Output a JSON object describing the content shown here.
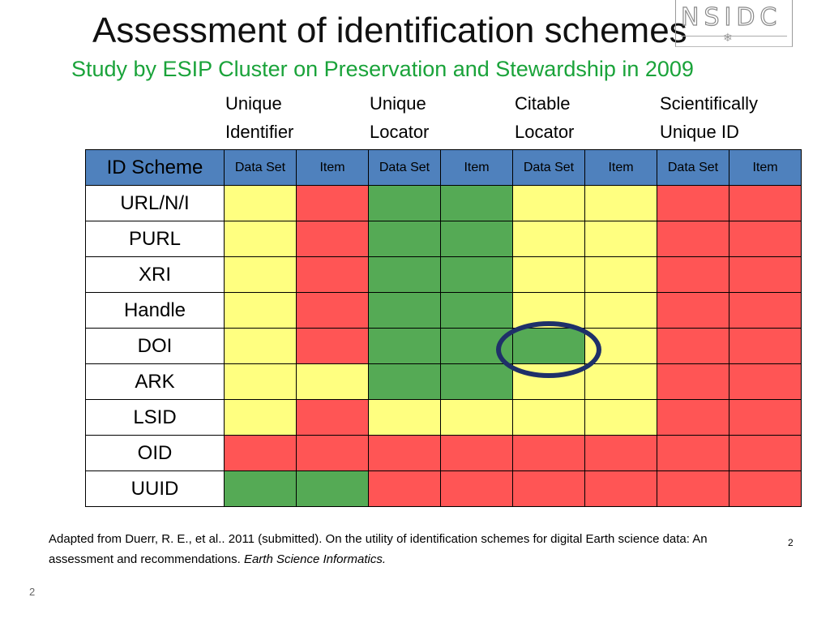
{
  "title": "Assessment of identification schemes",
  "subtitle": "Study by ESIP Cluster on Preservation and Stewardship in 2009",
  "logo_text": "NSIDC",
  "column_groups": [
    {
      "line1": "Unique",
      "line2": "Identifier"
    },
    {
      "line1": "Unique",
      "line2": "Locator"
    },
    {
      "line1": "Citable",
      "line2": "Locator"
    },
    {
      "line1": "Scientifically",
      "line2": "Unique ID"
    }
  ],
  "table": {
    "corner": "ID Scheme",
    "subheaders": [
      "Data Set",
      "Item",
      "Data Set",
      "Item",
      "Data Set",
      "Item",
      "Data Set",
      "Item"
    ],
    "rows": [
      {
        "label": "URL/N/I",
        "cells": [
          "yellow",
          "red",
          "green",
          "green",
          "yellow",
          "yellow",
          "red",
          "red"
        ]
      },
      {
        "label": "PURL",
        "cells": [
          "yellow",
          "red",
          "green",
          "green",
          "yellow",
          "yellow",
          "red",
          "red"
        ]
      },
      {
        "label": "XRI",
        "cells": [
          "yellow",
          "red",
          "green",
          "green",
          "yellow",
          "yellow",
          "red",
          "red"
        ]
      },
      {
        "label": "Handle",
        "cells": [
          "yellow",
          "red",
          "green",
          "green",
          "yellow",
          "yellow",
          "red",
          "red"
        ]
      },
      {
        "label": "DOI",
        "cells": [
          "yellow",
          "red",
          "green",
          "green",
          "green",
          "yellow",
          "red",
          "red"
        ]
      },
      {
        "label": "ARK",
        "cells": [
          "yellow",
          "yellow",
          "green",
          "green",
          "yellow",
          "yellow",
          "red",
          "red"
        ]
      },
      {
        "label": "LSID",
        "cells": [
          "yellow",
          "red",
          "yellow",
          "yellow",
          "yellow",
          "yellow",
          "red",
          "red"
        ]
      },
      {
        "label": "OID",
        "cells": [
          "red",
          "red",
          "red",
          "red",
          "red",
          "red",
          "red",
          "red"
        ]
      },
      {
        "label": "UUID",
        "cells": [
          "green",
          "green",
          "red",
          "red",
          "red",
          "red",
          "red",
          "red"
        ]
      }
    ]
  },
  "colors": {
    "yellow": "#ffff80",
    "red": "#ff5555",
    "green": "#55aa55",
    "header_blue": "#4f81bd",
    "subtitle_green": "#1aa33a",
    "circle": "#1f3069"
  },
  "citation": {
    "text": "Adapted from Duerr, R. E., et al.. 2011 (submitted). On the utility of identification schemes for digital Earth science data: An assessment and recommendations. ",
    "journal": "Earth Science Informatics."
  },
  "page_number_small": "2",
  "page_number_bottom": "2"
}
